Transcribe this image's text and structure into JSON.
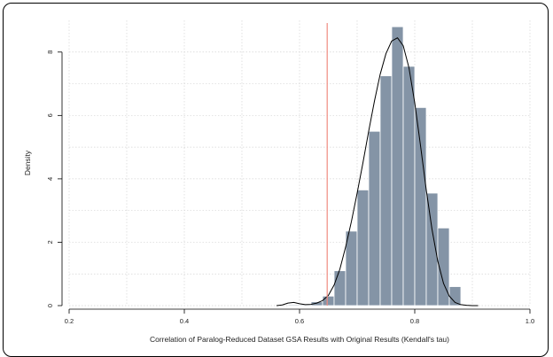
{
  "chart_data": {
    "type": "bar",
    "title": "",
    "xlabel": "Correlation of Paralog-Reduced Dataset GSA Results with Original Results (Kendall's tau)",
    "ylabel": "Density",
    "xlim": [
      0.2,
      1.0
    ],
    "ylim": [
      0,
      9.0
    ],
    "xticks": [
      0.2,
      0.4,
      0.6,
      0.8,
      1.0
    ],
    "xtick_labels": [
      "0.2",
      "0.4",
      "0.6",
      "0.8",
      "1.0"
    ],
    "yticks": [
      0,
      2,
      4,
      6,
      8
    ],
    "ytick_labels": [
      "0",
      "2",
      "4",
      "6",
      "8"
    ],
    "grid": true,
    "bin_width": 0.02,
    "histogram": {
      "bin_starts": [
        0.58,
        0.6,
        0.62,
        0.64,
        0.66,
        0.68,
        0.7,
        0.72,
        0.74,
        0.76,
        0.78,
        0.8,
        0.82,
        0.84,
        0.86
      ],
      "density": [
        0.03,
        0.03,
        0.12,
        0.3,
        1.1,
        2.35,
        3.65,
        5.5,
        7.25,
        8.8,
        7.55,
        6.25,
        3.55,
        2.45,
        0.6
      ],
      "color": "#8494a6"
    },
    "kde": {
      "x": [
        0.56,
        0.57,
        0.58,
        0.59,
        0.6,
        0.61,
        0.62,
        0.63,
        0.64,
        0.65,
        0.66,
        0.67,
        0.68,
        0.69,
        0.7,
        0.71,
        0.72,
        0.73,
        0.74,
        0.75,
        0.76,
        0.77,
        0.78,
        0.79,
        0.8,
        0.81,
        0.82,
        0.83,
        0.84,
        0.85,
        0.86,
        0.87,
        0.88,
        0.89,
        0.9,
        0.91
      ],
      "y": [
        0.0,
        0.02,
        0.08,
        0.1,
        0.06,
        0.03,
        0.04,
        0.08,
        0.16,
        0.32,
        0.65,
        1.15,
        1.85,
        2.65,
        3.55,
        4.5,
        5.5,
        6.45,
        7.3,
        7.95,
        8.35,
        8.45,
        8.2,
        7.5,
        6.4,
        5.05,
        3.65,
        2.4,
        1.4,
        0.7,
        0.3,
        0.1,
        0.03,
        0.01,
        0.0,
        0.0
      ],
      "color": "#000000"
    },
    "reference_line": {
      "x": 0.648,
      "color": "#f08a80"
    }
  }
}
